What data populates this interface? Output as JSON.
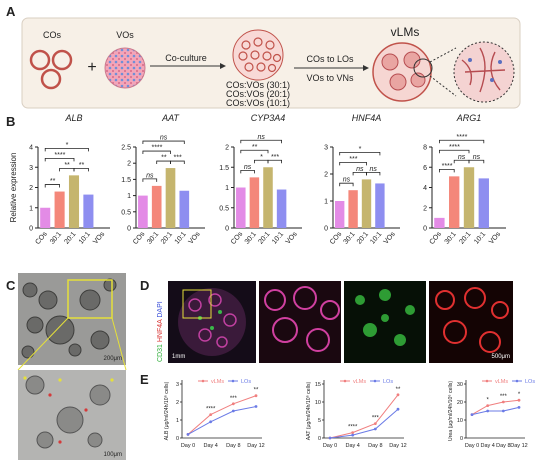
{
  "panel_labels": [
    "A",
    "B",
    "C",
    "D",
    "E"
  ],
  "panel_a": {
    "cos": "COs",
    "vos": "VOs",
    "coculture": "Co-culture",
    "ratios": [
      "COs:VOs (30:1)",
      "COs:VOs (20:1)",
      "COs:VOs (10:1)"
    ],
    "step1": "COs to LOs",
    "step2": "VOs to VNs",
    "result": "vLMs"
  },
  "panel_c": {
    "scale_top": "200μm",
    "scale_bottom": "100μm"
  },
  "panel_d": {
    "stains": [
      "CD31",
      "HNF4A",
      "DAPI"
    ],
    "scale_first": "1mm",
    "scale_last": "500μm"
  },
  "chart_data": [
    {
      "type": "bar",
      "title": "ALB",
      "ylabel": "Relative expression",
      "categories": [
        "COs",
        "30:1",
        "20:1",
        "10:1",
        "VOs"
      ],
      "values": [
        1.0,
        1.8,
        2.6,
        1.65,
        0
      ],
      "colors": [
        "#e38be6",
        "#f4877a",
        "#c5b56e",
        "#8e8ef0",
        "#8e8ef0"
      ],
      "ylim": [
        0,
        4
      ],
      "yticks": [
        0,
        1,
        2,
        3,
        4
      ],
      "significance": [
        "**",
        "**",
        "**",
        "****",
        "*"
      ]
    },
    {
      "type": "bar",
      "title": "AAT",
      "categories": [
        "COs",
        "30:1",
        "20:1",
        "10:1",
        "VOs"
      ],
      "values": [
        1.0,
        1.3,
        1.85,
        1.15,
        0
      ],
      "colors": [
        "#e38be6",
        "#f4877a",
        "#c5b56e",
        "#8e8ef0",
        "#8e8ef0"
      ],
      "ylim": [
        0,
        2.5
      ],
      "yticks": [
        0,
        0.5,
        1,
        1.5,
        2,
        2.5
      ],
      "significance": [
        "ns",
        "**",
        "***",
        "****",
        "ns"
      ]
    },
    {
      "type": "bar",
      "title": "CYP3A4",
      "categories": [
        "COs",
        "30:1",
        "20:1",
        "10:1",
        "VOs"
      ],
      "values": [
        1.0,
        1.25,
        1.5,
        0.95,
        0
      ],
      "colors": [
        "#e38be6",
        "#f4877a",
        "#c5b56e",
        "#8e8ef0",
        "#8e8ef0"
      ],
      "ylim": [
        0,
        2
      ],
      "yticks": [
        0,
        0.5,
        1,
        1.5,
        2
      ],
      "significance": [
        "ns",
        "*",
        "***",
        "**",
        "ns"
      ]
    },
    {
      "type": "bar",
      "title": "HNF4A",
      "categories": [
        "COs",
        "30:1",
        "20:1",
        "10:1",
        "VOs"
      ],
      "values": [
        1.0,
        1.4,
        1.8,
        1.65,
        0
      ],
      "colors": [
        "#e38be6",
        "#f4877a",
        "#c5b56e",
        "#8e8ef0",
        "#8e8ef0"
      ],
      "ylim": [
        0,
        3
      ],
      "yticks": [
        0,
        1,
        2,
        3
      ],
      "significance": [
        "ns",
        "ns",
        "ns",
        "***",
        "*"
      ]
    },
    {
      "type": "bar",
      "title": "ARG1",
      "categories": [
        "COs",
        "30:1",
        "20:1",
        "10:1",
        "VOs"
      ],
      "values": [
        1.0,
        5.1,
        6.0,
        4.9,
        0
      ],
      "colors": [
        "#e38be6",
        "#f4877a",
        "#c5b56e",
        "#8e8ef0",
        "#8e8ef0"
      ],
      "ylim": [
        0,
        8
      ],
      "yticks": [
        0,
        2,
        4,
        6,
        8
      ],
      "significance": [
        "****",
        "ns",
        "ns",
        "****",
        "****"
      ]
    },
    {
      "type": "line",
      "ylabel": "ALB (μg/ml/24h/10⁶ cells)",
      "categories": [
        "Day 0",
        "Day 4",
        "Day 8",
        "Day 12"
      ],
      "series": [
        {
          "name": "vLMs",
          "color": "#f07f7f",
          "values": [
            0.2,
            1.3,
            1.9,
            2.35
          ]
        },
        {
          "name": "LOs",
          "color": "#6b7be6",
          "values": [
            0.2,
            0.9,
            1.5,
            1.75
          ]
        }
      ],
      "ylim": [
        0,
        3
      ],
      "yticks": [
        0,
        1,
        2,
        3
      ],
      "significance": [
        "****",
        "***",
        "**"
      ]
    },
    {
      "type": "line",
      "ylabel": "AAT (μg/ml/24h/10⁶ cells)",
      "categories": [
        "Day 0",
        "Day 4",
        "Day 8",
        "Day 12"
      ],
      "series": [
        {
          "name": "vLMs",
          "color": "#f07f7f",
          "values": [
            0,
            1.5,
            4,
            12
          ]
        },
        {
          "name": "LOs",
          "color": "#6b7be6",
          "values": [
            0,
            0.8,
            2.5,
            8
          ]
        }
      ],
      "ylim": [
        0,
        15
      ],
      "yticks": [
        0,
        5,
        10,
        15
      ],
      "significance": [
        "****",
        "***",
        "**"
      ]
    },
    {
      "type": "line",
      "ylabel": "Urea (μg/ml/24h/10⁶ cells)",
      "categories": [
        "Day 0",
        "Day 4",
        "Day 8",
        "Day 12"
      ],
      "series": [
        {
          "name": "vLMs",
          "color": "#f07f7f",
          "values": [
            13,
            18,
            20,
            21
          ]
        },
        {
          "name": "LOs",
          "color": "#6b7be6",
          "values": [
            13,
            15,
            15,
            17
          ]
        }
      ],
      "ylim": [
        0,
        30
      ],
      "yticks": [
        0,
        10,
        20,
        30
      ],
      "significance": [
        "*",
        "***",
        "*"
      ]
    }
  ]
}
